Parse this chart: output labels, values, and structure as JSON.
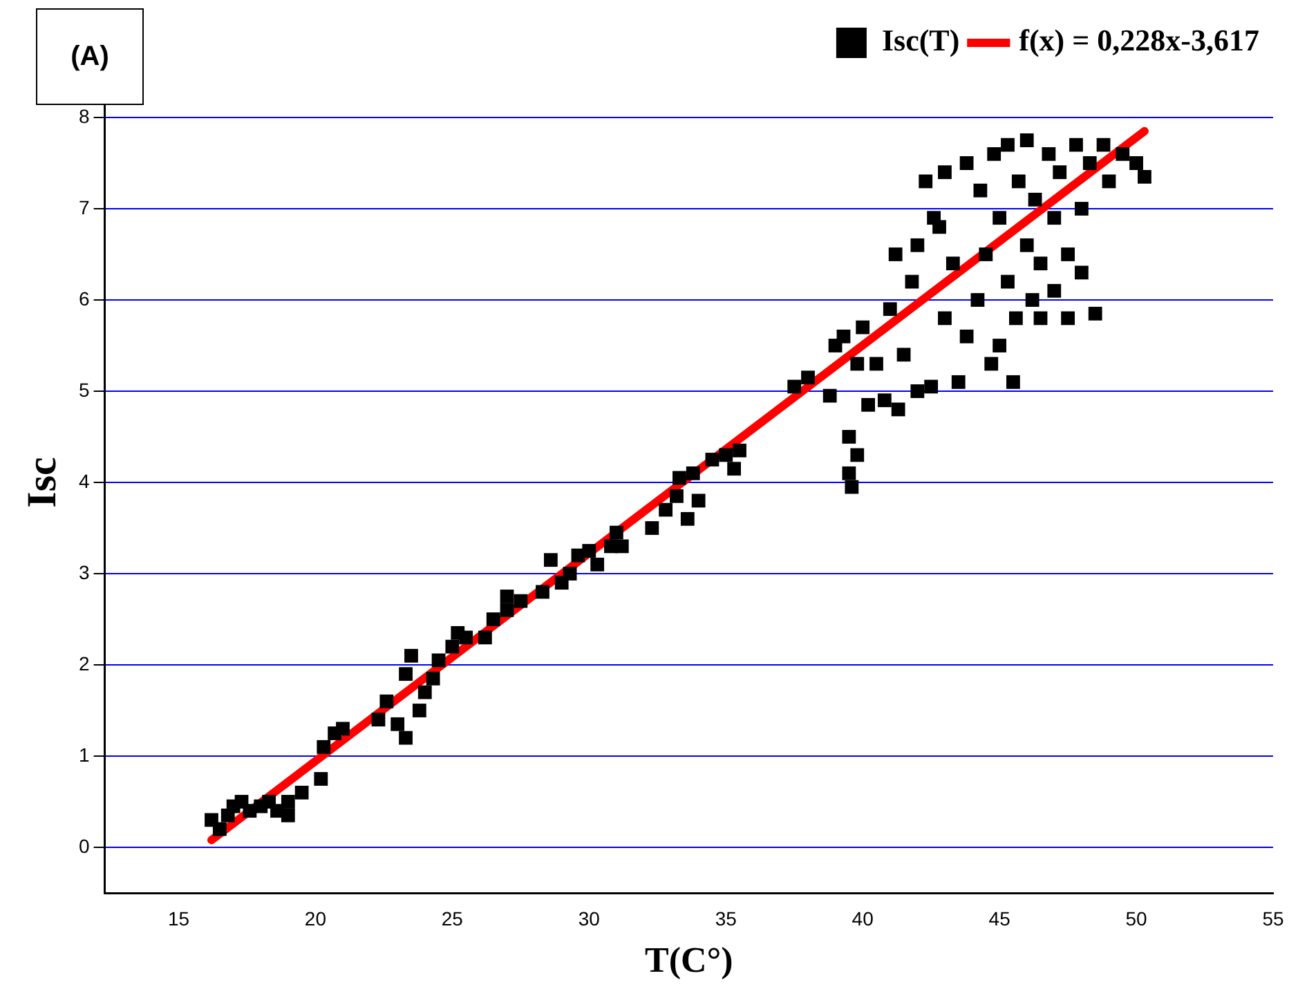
{
  "chart_data": {
    "type": "scatter",
    "xlabel": "T(C°)",
    "ylabel": "Isc",
    "annotations": [
      "(A)"
    ],
    "xlim": [
      12.3,
      55
    ],
    "ylim": [
      -0.5,
      8.5
    ],
    "xticks": [
      15,
      20,
      25,
      30,
      35,
      40,
      45,
      50,
      55
    ],
    "yticks": [
      0,
      1,
      2,
      3,
      4,
      5,
      6,
      7,
      8
    ],
    "grid": "y",
    "legend": "top right",
    "marker": "square",
    "series": [
      {
        "name": "Isc(T)",
        "type": "scatter",
        "color": "#000000",
        "x": [
          16.2,
          16.5,
          16.8,
          17,
          17.3,
          17.6,
          18,
          18.3,
          18.6,
          19,
          19,
          19.5,
          20.2,
          20.3,
          20.7,
          21,
          22.3,
          22.6,
          23,
          23.3,
          23.3,
          23.5,
          23.8,
          24,
          24.3,
          24.5,
          25,
          25.2,
          25.5,
          26.2,
          26.5,
          27,
          27,
          27.5,
          28.3,
          28.6,
          29,
          29.3,
          29.6,
          30,
          30.3,
          30.8,
          31,
          31.2,
          32.3,
          32.8,
          33.2,
          33.3,
          33.6,
          33.8,
          34,
          34.5,
          35,
          35.3,
          35.5,
          37.5,
          38,
          38.8,
          39,
          39.3,
          39.5,
          39.5,
          39.6,
          39.8,
          39.8,
          40,
          40.2,
          40.5,
          40.8,
          41,
          41.2,
          41.3,
          41.5,
          41.8,
          42,
          42,
          42.3,
          42.5,
          42.6,
          42.8,
          43,
          43,
          43.3,
          43.5,
          43.8,
          43.8,
          44.2,
          44.3,
          44.5,
          44.7,
          44.8,
          45,
          45,
          45.3,
          45.3,
          45.5,
          45.6,
          45.7,
          46,
          46,
          46.2,
          46.3,
          46.5,
          46.5,
          46.8,
          47,
          47,
          47.2,
          47.5,
          47.5,
          47.8,
          48,
          48,
          48.3,
          48.5,
          48.8,
          49,
          49.5,
          50,
          50.3
        ],
        "values": [
          0.3,
          0.2,
          0.35,
          0.45,
          0.5,
          0.4,
          0.45,
          0.5,
          0.4,
          0.35,
          0.5,
          0.6,
          0.75,
          1.1,
          1.25,
          1.3,
          1.4,
          1.6,
          1.35,
          1.2,
          1.9,
          2.1,
          1.5,
          1.7,
          1.85,
          2.05,
          2.2,
          2.35,
          2.3,
          2.3,
          2.5,
          2.6,
          2.75,
          2.7,
          2.8,
          3.15,
          2.9,
          3,
          3.2,
          3.25,
          3.1,
          3.3,
          3.45,
          3.3,
          3.5,
          3.7,
          3.85,
          4.05,
          3.6,
          4.1,
          3.8,
          4.25,
          4.3,
          4.15,
          4.35,
          5.05,
          5.15,
          4.95,
          5.5,
          5.6,
          4.5,
          4.1,
          3.95,
          4.3,
          5.3,
          5.7,
          4.85,
          5.3,
          4.9,
          5.9,
          6.5,
          4.8,
          5.4,
          6.2,
          6.6,
          5,
          7.3,
          5.05,
          6.9,
          6.8,
          7.4,
          5.8,
          6.4,
          5.1,
          7.5,
          5.6,
          6,
          7.2,
          6.5,
          5.3,
          7.6,
          6.9,
          5.5,
          7.7,
          6.2,
          5.1,
          5.8,
          7.3,
          6.6,
          7.75,
          6,
          7.1,
          6.4,
          5.8,
          7.6,
          6.9,
          6.1,
          7.4,
          6.5,
          5.8,
          7.7,
          7,
          6.3,
          7.5,
          5.85,
          7.7,
          7.3,
          7.6,
          7.5,
          7.35
        ]
      },
      {
        "name": "f(x) = 0,228x-3,617",
        "type": "line",
        "color": "#ff0000",
        "marker": "none",
        "x": [
          16.2,
          50.3
        ],
        "values": [
          0.08,
          7.85
        ]
      }
    ]
  }
}
